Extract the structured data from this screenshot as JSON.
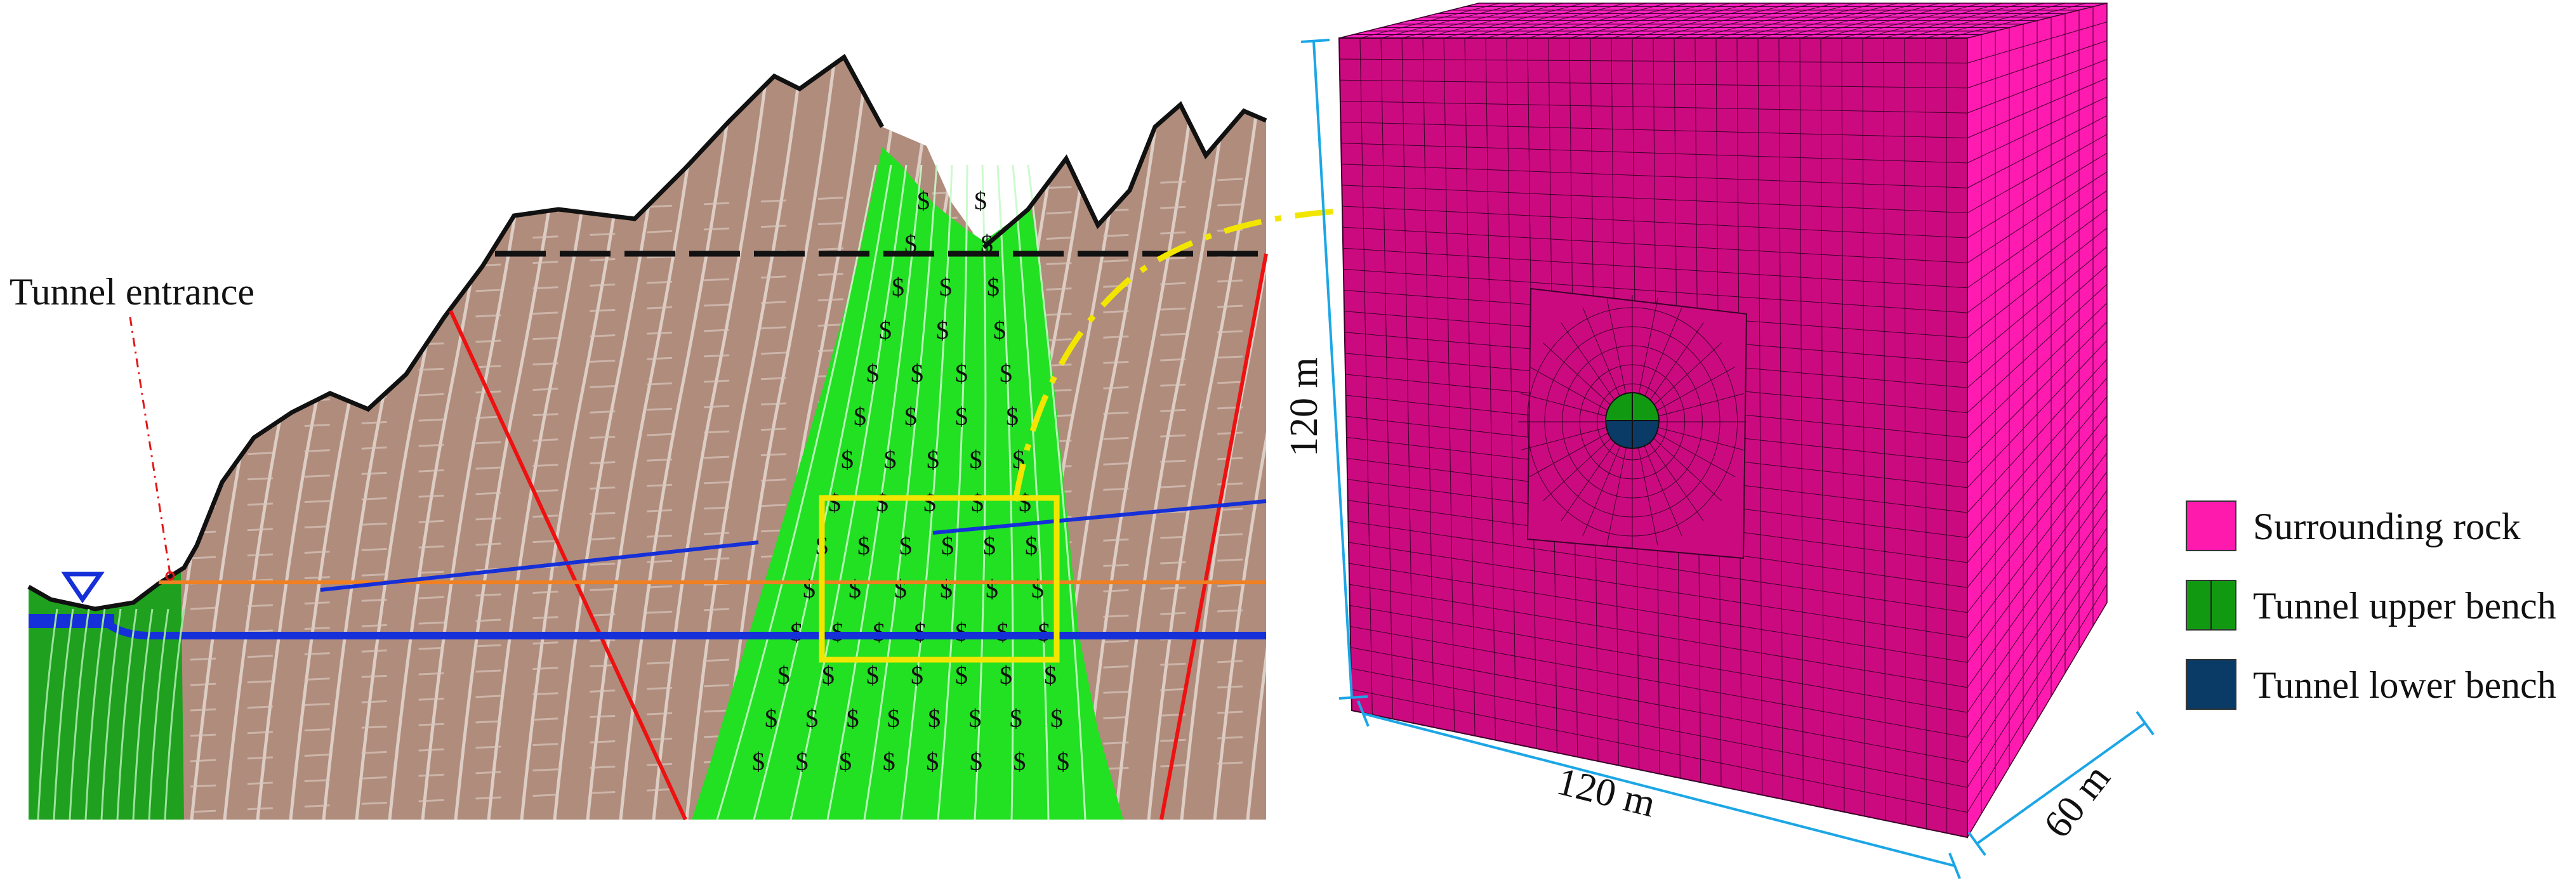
{
  "geology": {
    "tunnel_entrance_label": "Tunnel  entrance",
    "colors": {
      "rock": "#B08C7C",
      "fault_zone": "#22E022",
      "entrance_zone": "#1FA01F",
      "fault_line": "#EE1111",
      "tunnel_line": "#1530D8",
      "orange_line": "#F08020",
      "callout": "#F2E600",
      "ground_surface": "#111111"
    },
    "fault_zone_symbol": "$",
    "water_symbol": "water-level-icon"
  },
  "model": {
    "dimensions": {
      "height": "120 m",
      "width": "120 m",
      "depth": "60 m"
    },
    "colors": {
      "face": "#CC0A80",
      "side": "#FF1AB0",
      "top": "#FF22C0",
      "grid": "#3A0028",
      "dimension_line": "#1CA6E6"
    }
  },
  "legend": {
    "items": [
      {
        "label": "Surrounding rock",
        "color": "#FF1AAE"
      },
      {
        "label": "Tunnel upper bench",
        "color": "#119A11"
      },
      {
        "label": "Tunnel lower bench",
        "color": "#0A3A66"
      }
    ]
  }
}
